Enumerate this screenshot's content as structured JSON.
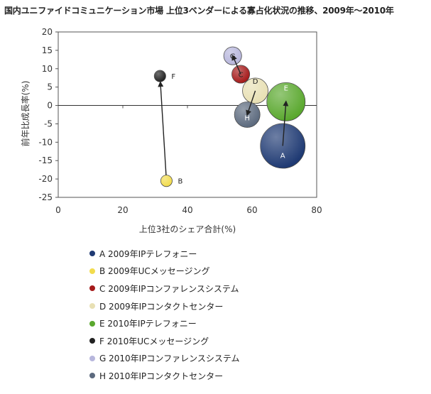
{
  "chart_data": {
    "type": "scatter",
    "subtype": "bubble",
    "title": "国内ユニファイドコミュニケーション市場 上位3ベンダーによる寡占化状況の推移、2009年～2010年",
    "xlabel": "上位3社のシェア合計(%)",
    "ylabel": "前年比成長率(%)",
    "xlim": [
      0,
      80
    ],
    "ylim": [
      -25,
      20
    ],
    "x_ticks": [
      0,
      20,
      40,
      60,
      80
    ],
    "y_ticks": [
      20,
      15,
      10,
      5,
      0,
      -5,
      -10,
      -15,
      -20,
      -25
    ],
    "grid": false,
    "legend_position": "bottom",
    "series": [
      {
        "label": "A",
        "name": "A 2009年IPテレフォニー",
        "x": 69.5,
        "y": -11,
        "size": 3.5,
        "color": "#1f3a73",
        "label_color": "#ffffff"
      },
      {
        "label": "B",
        "name": "B 2009年UCメッセージング",
        "x": 33.5,
        "y": -20.5,
        "size": 0.9,
        "color": "#f2dc4d",
        "label_color": "#222222"
      },
      {
        "label": "C",
        "name": "C 2009年IPコンファレンスシステム",
        "x": 56.5,
        "y": 8.5,
        "size": 1.4,
        "color": "#a51a1a",
        "label_color": "#222222"
      },
      {
        "label": "D",
        "name": "D 2009年IPコンタクトセンター",
        "x": 61,
        "y": 4,
        "size": 2.0,
        "color": "#e8e0b4",
        "label_color": "#222222"
      },
      {
        "label": "E",
        "name": "E 2010年IPテレフォニー",
        "x": 70.5,
        "y": 1,
        "size": 3.0,
        "color": "#5aa82e",
        "label_color": "#ffffff"
      },
      {
        "label": "F",
        "name": "F 2010年UCメッセージング",
        "x": 31.5,
        "y": 8,
        "size": 0.9,
        "color": "#222222",
        "label_color": "#222222"
      },
      {
        "label": "G",
        "name": "G 2010年IPコンファレンスシステム",
        "x": 54,
        "y": 13.5,
        "size": 1.4,
        "color": "#b7b6dc",
        "label_color": "#222222"
      },
      {
        "label": "H",
        "name": "H 2010年IPコンタクトセンター",
        "x": 58.5,
        "y": -2.5,
        "size": 2.0,
        "color": "#5c6a7e",
        "label_color": "#ffffff"
      }
    ],
    "arrows": [
      {
        "from": "A",
        "to": "E"
      },
      {
        "from": "B",
        "to": "F"
      },
      {
        "from": "C",
        "to": "G"
      },
      {
        "from": "D",
        "to": "H"
      }
    ]
  }
}
